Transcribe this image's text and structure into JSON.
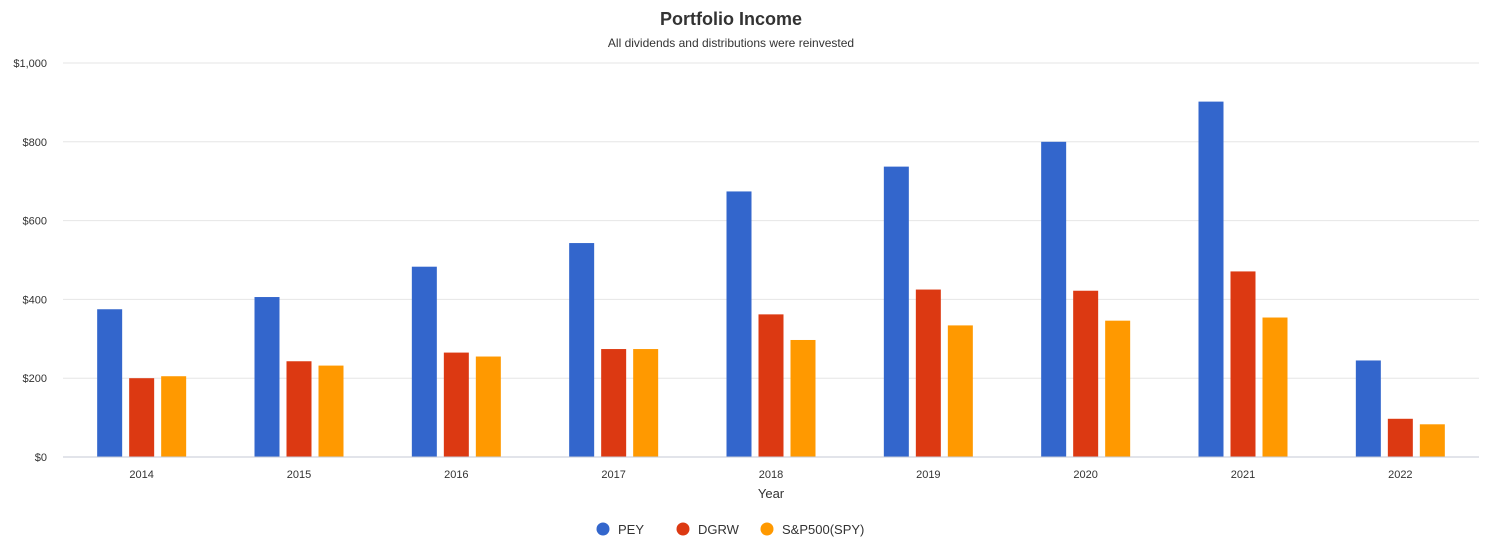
{
  "chart_data": {
    "type": "bar",
    "title": "Portfolio Income",
    "subtitle": "All dividends and distributions were reinvested",
    "xlabel": "Year",
    "ylabel": "",
    "categories": [
      "2014",
      "2015",
      "2016",
      "2017",
      "2018",
      "2019",
      "2020",
      "2021",
      "2022"
    ],
    "series": [
      {
        "name": "PEY",
        "color": "#3366cc",
        "values": [
          375,
          406,
          483,
          543,
          674,
          737,
          800,
          902,
          245
        ]
      },
      {
        "name": "DGRW",
        "color": "#dc3912",
        "values": [
          200,
          243,
          265,
          274,
          362,
          425,
          422,
          471,
          97
        ]
      },
      {
        "name": "S&P500(SPY)",
        "color": "#ff9900",
        "values": [
          205,
          232,
          255,
          274,
          297,
          334,
          346,
          354,
          83
        ]
      }
    ],
    "ylim": [
      0,
      1000
    ],
    "yticks": [
      0,
      200,
      400,
      600,
      800,
      1000
    ],
    "ytick_labels": [
      "$0",
      "$200",
      "$400",
      "$600",
      "$800",
      "$1,000"
    ],
    "grid": true,
    "legend_position": "bottom"
  }
}
